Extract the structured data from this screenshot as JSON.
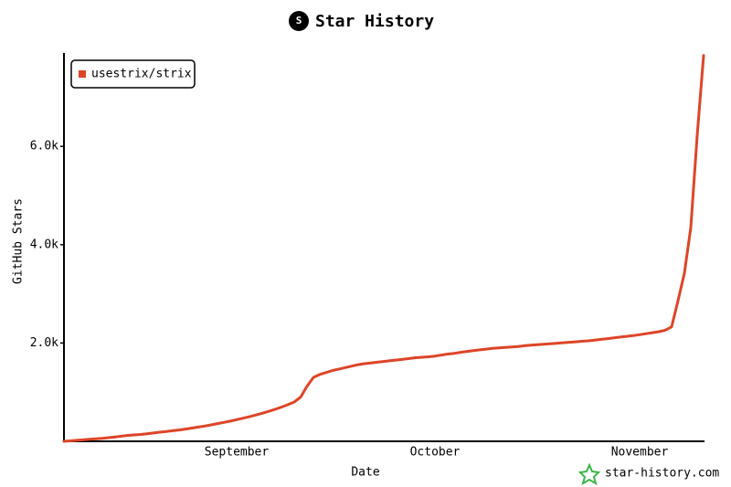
{
  "chart_data": {
    "type": "line",
    "title": "Star History",
    "x_label": "Date",
    "y_label": "GitHub Stars",
    "watermark": "star-history.com",
    "categories": [
      null,
      null,
      null,
      null,
      null,
      null,
      null,
      null,
      null,
      null,
      null,
      null,
      null,
      null,
      null,
      null,
      null,
      null,
      null,
      null,
      null,
      null,
      null,
      null,
      null,
      null,
      null,
      "September",
      null,
      null,
      null,
      null,
      null,
      null,
      null,
      null,
      null,
      null,
      null,
      null,
      null,
      null,
      null,
      null,
      null,
      null,
      null,
      null,
      null,
      null,
      null,
      null,
      null,
      null,
      null,
      null,
      null,
      null,
      "October",
      null,
      null,
      null,
      null,
      null,
      null,
      null,
      null,
      null,
      null,
      null,
      null,
      null,
      null,
      null,
      null,
      null,
      null,
      null,
      null,
      null,
      null,
      null,
      null,
      null,
      null,
      null,
      null,
      null,
      null,
      null,
      "November",
      null,
      null,
      null,
      null,
      null,
      null,
      null,
      null,
      null,
      null
    ],
    "series": [
      {
        "name": "usestrix/strix",
        "color": "#dd4528",
        "values": [
          0,
          10,
          20,
          30,
          40,
          50,
          60,
          75,
          90,
          105,
          120,
          130,
          140,
          155,
          170,
          185,
          200,
          215,
          230,
          250,
          270,
          290,
          310,
          335,
          360,
          385,
          410,
          440,
          470,
          500,
          535,
          570,
          610,
          650,
          695,
          745,
          800,
          900,
          1120,
          1300,
          1360,
          1400,
          1440,
          1470,
          1500,
          1530,
          1560,
          1580,
          1595,
          1610,
          1625,
          1640,
          1655,
          1670,
          1685,
          1700,
          1710,
          1720,
          1735,
          1755,
          1775,
          1790,
          1810,
          1830,
          1845,
          1860,
          1875,
          1890,
          1900,
          1910,
          1920,
          1930,
          1945,
          1955,
          1965,
          1975,
          1985,
          1995,
          2005,
          2015,
          2025,
          2035,
          2045,
          2060,
          2075,
          2090,
          2105,
          2120,
          2135,
          2150,
          2170,
          2190,
          2210,
          2230,
          2260,
          2330,
          2860,
          3420,
          4350,
          6220,
          7850
        ]
      }
    ],
    "ylim": [
      0,
      7900
    ],
    "yticks": [
      {
        "value": 2000,
        "label": "2.0k"
      },
      {
        "value": 4000,
        "label": "4.0k"
      },
      {
        "value": 6000,
        "label": "6.0k"
      }
    ],
    "legend": "top-left"
  }
}
